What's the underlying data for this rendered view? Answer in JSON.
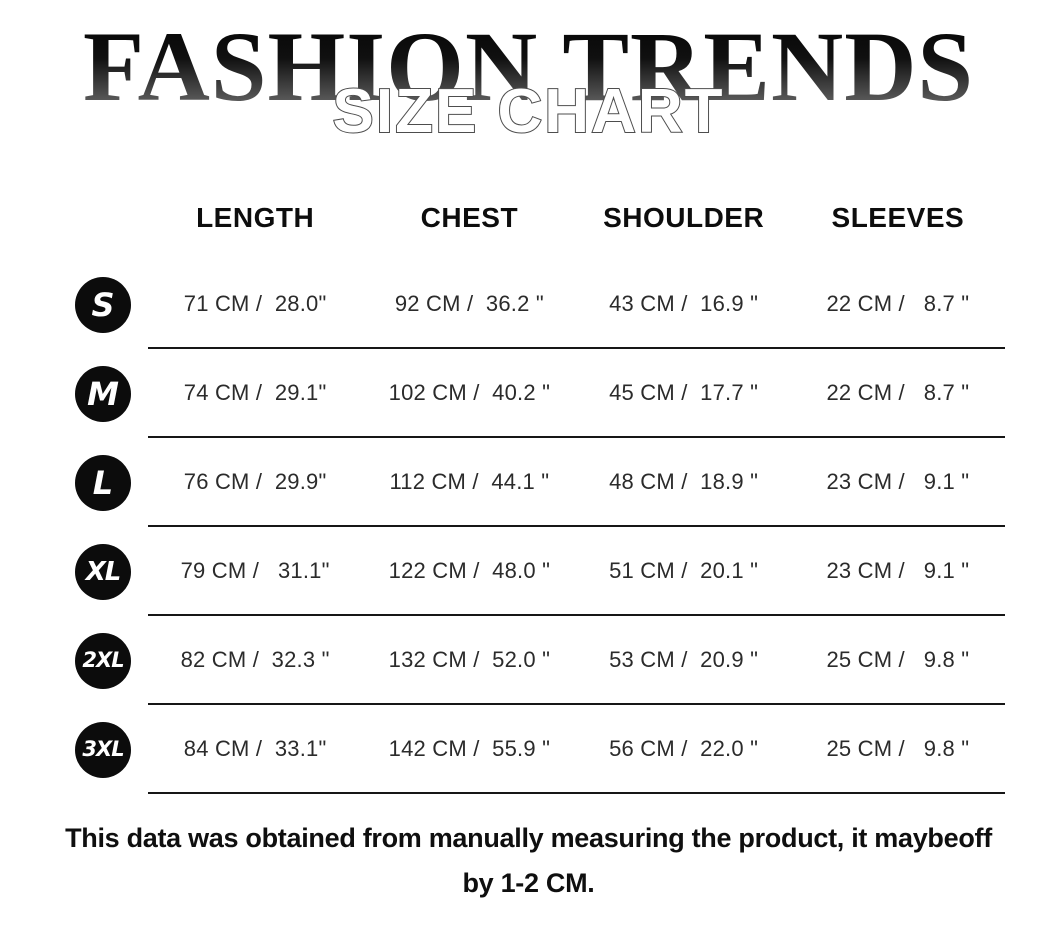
{
  "header": {
    "title": "FASHION TRENDS",
    "subtitle": "SIZE CHART"
  },
  "table": {
    "columns": [
      "LENGTH",
      "CHEST",
      "SHOULDER",
      "SLEEVES"
    ],
    "rows": [
      {
        "size": "S",
        "length": "71 CM /  28.0\"",
        "chest": "92 CM /  36.2 \"",
        "shoulder": "43 CM /  16.9 \"",
        "sleeves": "22 CM /   8.7 \""
      },
      {
        "size": "M",
        "length": "74 CM /  29.1\"",
        "chest": "102 CM /  40.2 \"",
        "shoulder": "45 CM /  17.7 \"",
        "sleeves": "22 CM /   8.7 \""
      },
      {
        "size": "L",
        "length": "76 CM /  29.9\"",
        "chest": "112 CM /  44.1 \"",
        "shoulder": "48 CM /  18.9 \"",
        "sleeves": "23 CM /   9.1 \""
      },
      {
        "size": "XL",
        "length": "79 CM /   31.1\"",
        "chest": "122 CM /  48.0 \"",
        "shoulder": "51 CM /  20.1 \"",
        "sleeves": "23 CM /   9.1 \""
      },
      {
        "size": "2XL",
        "length": "82 CM /  32.3 \"",
        "chest": "132 CM /  52.0 \"",
        "shoulder": "53 CM /  20.9 \"",
        "sleeves": "25 CM /   9.8 \""
      },
      {
        "size": "3XL",
        "length": "84 CM /  33.1\"",
        "chest": "142 CM /  55.9 \"",
        "shoulder": "56 CM /  22.0 \"",
        "sleeves": "25 CM /   9.8 \""
      }
    ]
  },
  "footer": {
    "line1": "This data was obtained from manually measuring the product, it maybeoff",
    "line2": "by 1-2 CM."
  }
}
